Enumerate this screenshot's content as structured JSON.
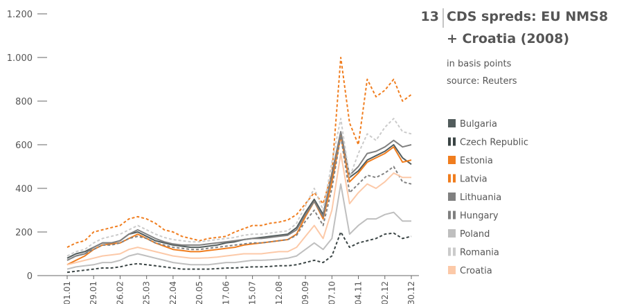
{
  "chart_data": {
    "type": "line",
    "number": "13",
    "title": [
      "CDS spreds: EU NMS8",
      "+ Croatia (2008)"
    ],
    "subtitle": "in basis points",
    "source": "source: Reuters",
    "categories": [
      "01.01",
      null,
      null,
      "29.01",
      null,
      null,
      "26.02",
      null,
      null,
      "25.03",
      null,
      null,
      "22.04",
      null,
      null,
      "20.05",
      null,
      null,
      "17.06",
      null,
      null,
      "15.07",
      null,
      null,
      "12.08",
      null,
      null,
      "09.09",
      null,
      null,
      "07.10",
      null,
      null,
      "04.11",
      null,
      null,
      "02.12",
      null,
      null,
      "30.12"
    ],
    "ylim": [
      0,
      1200
    ],
    "yticks": [
      0,
      200,
      400,
      600,
      800,
      {
        "value": 1000,
        "label": "1.000"
      },
      {
        "value": 1200,
        "label": "1.200"
      }
    ],
    "grid": false,
    "legend": "right",
    "series": [
      {
        "name": "Bulgaria",
        "color": "#525c5c",
        "style": "solid",
        "values": [
          80,
          100,
          110,
          130,
          150,
          150,
          160,
          190,
          200,
          180,
          160,
          150,
          140,
          135,
          130,
          130,
          135,
          140,
          150,
          155,
          165,
          170,
          175,
          180,
          185,
          190,
          220,
          290,
          350,
          280,
          460,
          650,
          450,
          480,
          530,
          550,
          570,
          600,
          540,
          510
        ]
      },
      {
        "name": "Czech Republic",
        "color": "#3a4444",
        "style": "dashed",
        "values": [
          15,
          20,
          25,
          30,
          35,
          35,
          40,
          50,
          55,
          50,
          45,
          40,
          35,
          30,
          30,
          30,
          30,
          32,
          35,
          35,
          38,
          40,
          40,
          42,
          45,
          45,
          50,
          60,
          70,
          60,
          90,
          200,
          130,
          150,
          160,
          170,
          190,
          195,
          170,
          180
        ]
      },
      {
        "name": "Estonia",
        "color": "#f07d1e",
        "style": "solid",
        "values": [
          50,
          70,
          90,
          120,
          140,
          145,
          150,
          170,
          190,
          170,
          150,
          135,
          120,
          115,
          110,
          110,
          115,
          120,
          125,
          130,
          140,
          145,
          150,
          155,
          160,
          165,
          190,
          270,
          340,
          260,
          430,
          640,
          430,
          470,
          520,
          540,
          560,
          590,
          520,
          530
        ]
      },
      {
        "name": "Latvia",
        "color": "#f07d1e",
        "style": "dashed",
        "values": [
          130,
          150,
          160,
          200,
          210,
          220,
          230,
          260,
          270,
          260,
          240,
          210,
          200,
          180,
          170,
          160,
          170,
          175,
          180,
          200,
          215,
          230,
          230,
          240,
          245,
          255,
          280,
          330,
          380,
          330,
          470,
          1000,
          700,
          600,
          900,
          820,
          850,
          900,
          800,
          830
        ]
      },
      {
        "name": "Lithuania",
        "color": "#808080",
        "style": "solid",
        "values": [
          70,
          90,
          100,
          130,
          150,
          150,
          160,
          190,
          210,
          190,
          170,
          155,
          145,
          140,
          140,
          140,
          145,
          150,
          155,
          160,
          165,
          170,
          170,
          175,
          180,
          185,
          210,
          280,
          340,
          270,
          470,
          660,
          460,
          500,
          560,
          570,
          590,
          620,
          590,
          600
        ]
      },
      {
        "name": "Hungary",
        "color": "#808080",
        "style": "dashed",
        "values": [
          70,
          90,
          100,
          120,
          140,
          140,
          150,
          170,
          180,
          170,
          150,
          140,
          130,
          125,
          120,
          120,
          125,
          130,
          135,
          140,
          145,
          150,
          150,
          155,
          160,
          165,
          185,
          250,
          300,
          230,
          400,
          640,
          380,
          420,
          460,
          450,
          470,
          500,
          430,
          420
        ]
      },
      {
        "name": "Poland",
        "color": "#bfbfbf",
        "style": "solid",
        "values": [
          30,
          40,
          45,
          50,
          60,
          60,
          70,
          90,
          100,
          90,
          80,
          70,
          60,
          55,
          50,
          50,
          50,
          55,
          60,
          60,
          65,
          70,
          70,
          72,
          75,
          80,
          90,
          120,
          150,
          120,
          170,
          420,
          190,
          230,
          260,
          260,
          280,
          290,
          250,
          250
        ]
      },
      {
        "name": "Romania",
        "color": "#cbcbcb",
        "style": "dashed",
        "values": [
          90,
          110,
          120,
          150,
          170,
          180,
          190,
          210,
          230,
          210,
          190,
          175,
          165,
          160,
          155,
          155,
          160,
          165,
          170,
          175,
          185,
          190,
          190,
          195,
          200,
          205,
          240,
          320,
          400,
          300,
          520,
          720,
          450,
          560,
          650,
          620,
          680,
          720,
          660,
          650
        ]
      },
      {
        "name": "Croatia",
        "color": "#fcc9a8",
        "style": "solid",
        "values": [
          50,
          60,
          70,
          80,
          90,
          95,
          100,
          120,
          130,
          120,
          110,
          100,
          90,
          85,
          80,
          80,
          82,
          85,
          90,
          95,
          100,
          100,
          100,
          105,
          110,
          110,
          130,
          180,
          230,
          170,
          300,
          560,
          330,
          380,
          420,
          400,
          430,
          470,
          450,
          450
        ]
      }
    ]
  }
}
